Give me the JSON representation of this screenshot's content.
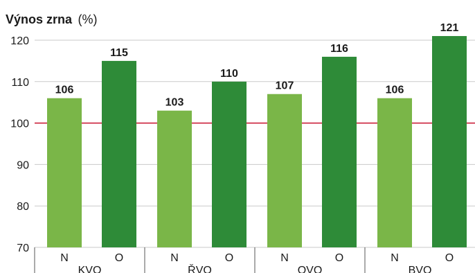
{
  "chart_data": {
    "type": "bar",
    "title": "Výnos zrna",
    "title_unit": "(%)",
    "ylim": [
      70,
      120
    ],
    "yticks": [
      70,
      80,
      90,
      100,
      110,
      120
    ],
    "reference_line": {
      "value": 100,
      "color": "#c8102e"
    },
    "grid": true,
    "groups": [
      "KVO",
      "ŘVO",
      "OVO",
      "BVO"
    ],
    "categories": [
      "N",
      "O",
      "N",
      "O",
      "N",
      "O",
      "N",
      "O"
    ],
    "values": [
      106,
      115,
      103,
      110,
      107,
      116,
      106,
      121
    ],
    "colors": {
      "N": "#7ab648",
      "O": "#2e8b38"
    }
  }
}
